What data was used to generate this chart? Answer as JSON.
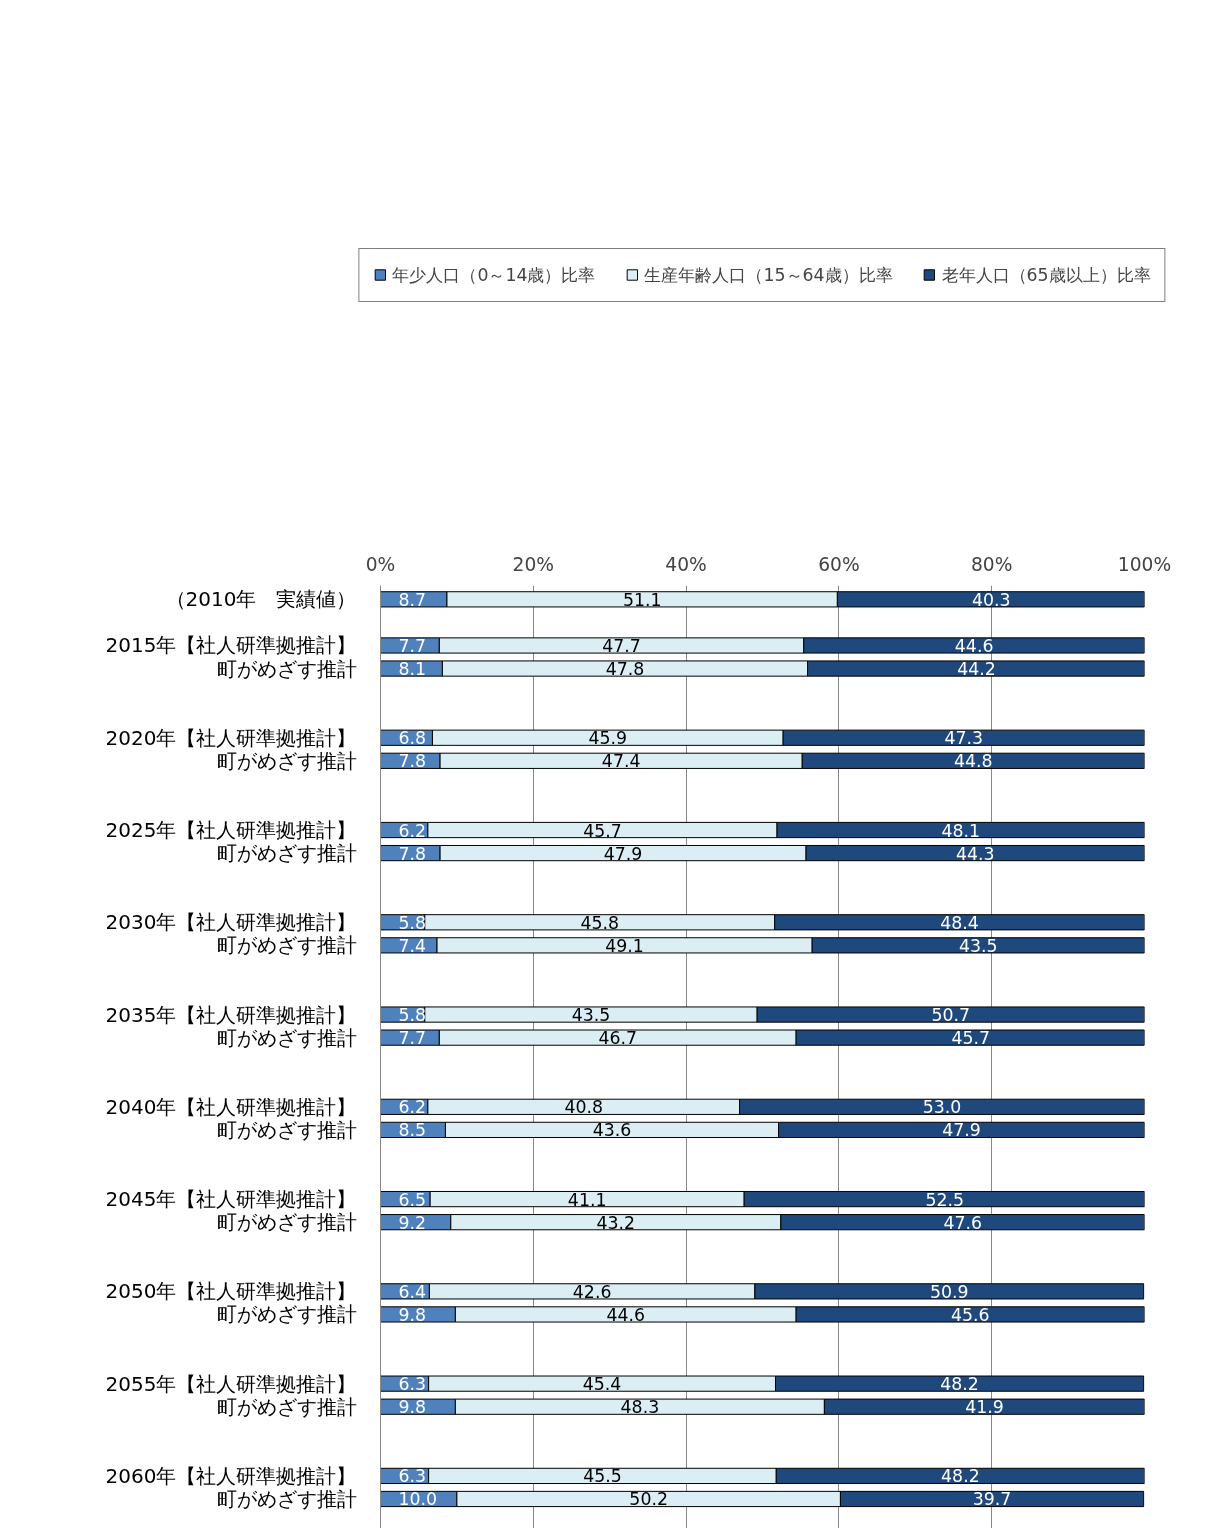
{
  "chart_data": {
    "type": "bar",
    "orientation": "horizontal",
    "stacked": true,
    "categories": [
      "（2010年　実績値）",
      null,
      "2015年【社人研準拠推計】",
      "町がめざす推計",
      null,
      null,
      "2020年【社人研準拠推計】",
      "町がめざす推計",
      null,
      null,
      "2025年【社人研準拠推計】",
      "町がめざす推計",
      null,
      null,
      "2030年【社人研準拠推計】",
      "町がめざす推計",
      null,
      null,
      "2035年【社人研準拠推計】",
      "町がめざす推計",
      null,
      null,
      "2040年【社人研準拠推計】",
      "町がめざす推計",
      null,
      null,
      "2045年【社人研準拠推計】",
      "町がめざす推計",
      null,
      null,
      "2050年【社人研準拠推計】",
      "町がめざす推計",
      null,
      null,
      "2055年【社人研準拠推計】",
      "町がめざす推計",
      null,
      null,
      "2060年【社人研準拠推計】",
      "町がめざす推計"
    ],
    "series": [
      {
        "name": "年少人口（0～14歳）比率",
        "color": "#4f81bd",
        "values": [
          8.7,
          null,
          7.7,
          8.1,
          null,
          null,
          6.8,
          7.8,
          null,
          null,
          6.2,
          7.8,
          null,
          null,
          5.8,
          7.4,
          null,
          null,
          5.8,
          7.7,
          null,
          null,
          6.2,
          8.5,
          null,
          null,
          6.5,
          9.2,
          null,
          null,
          6.4,
          9.8,
          null,
          null,
          6.3,
          9.8,
          null,
          null,
          6.3,
          10.0
        ],
        "value_labels": [
          "8.7",
          null,
          "7.7",
          "8.1",
          null,
          null,
          "6.8",
          "7.8",
          null,
          null,
          "6.2",
          "7.8",
          null,
          null,
          "5.8",
          "7.4",
          null,
          null,
          "5.8",
          "7.7",
          null,
          null,
          "6.2",
          "8.5",
          null,
          null,
          "6.5",
          "9.2",
          null,
          null,
          "6.4",
          "9.8",
          null,
          null,
          "6.3",
          "9.8",
          null,
          null,
          "6.3",
          "10.0"
        ]
      },
      {
        "name": "生産年齢人口（15～64歳）比率",
        "color": "#dbeef3",
        "values": [
          51.1,
          null,
          47.7,
          47.8,
          null,
          null,
          45.9,
          47.4,
          null,
          null,
          45.7,
          47.9,
          null,
          null,
          45.8,
          49.1,
          null,
          null,
          43.5,
          46.7,
          null,
          null,
          40.8,
          43.6,
          null,
          null,
          41.1,
          43.2,
          null,
          null,
          42.6,
          44.6,
          null,
          null,
          45.4,
          48.3,
          null,
          null,
          45.5,
          50.2
        ],
        "value_labels": [
          "51.1",
          null,
          "47.7",
          "47.8",
          null,
          null,
          "45.9",
          "47.4",
          null,
          null,
          "45.7",
          "47.9",
          null,
          null,
          "45.8",
          "49.1",
          null,
          null,
          "43.5",
          "46.7",
          null,
          null,
          "40.8",
          "43.6",
          null,
          null,
          "41.1",
          "43.2",
          null,
          null,
          "42.6",
          "44.6",
          null,
          null,
          "45.4",
          "48.3",
          null,
          null,
          "45.5",
          "50.2"
        ]
      },
      {
        "name": "老年人口（65歳以上）比率",
        "color": "#1f497d",
        "values": [
          40.3,
          null,
          44.6,
          44.2,
          null,
          null,
          47.3,
          44.8,
          null,
          null,
          48.1,
          44.3,
          null,
          null,
          48.4,
          43.5,
          null,
          null,
          50.7,
          45.7,
          null,
          null,
          53.0,
          47.9,
          null,
          null,
          52.5,
          47.6,
          null,
          null,
          50.9,
          45.6,
          null,
          null,
          48.2,
          41.9,
          null,
          null,
          48.2,
          39.7
        ],
        "value_labels": [
          "40.3",
          null,
          "44.6",
          "44.2",
          null,
          null,
          "47.3",
          "44.8",
          null,
          null,
          "48.1",
          "44.3",
          null,
          null,
          "48.4",
          "43.5",
          null,
          null,
          "50.7",
          "45.7",
          null,
          null,
          "53.0",
          "47.9",
          null,
          null,
          "52.5",
          "47.6",
          null,
          null,
          "50.9",
          "45.6",
          null,
          null,
          "48.2",
          "41.9",
          null,
          null,
          "48.2",
          "39.7"
        ]
      }
    ],
    "xlim": [
      0,
      100
    ],
    "xticks": [
      {
        "value": 0,
        "label": "0%"
      },
      {
        "value": 20,
        "label": "20%"
      },
      {
        "value": 40,
        "label": "40%"
      },
      {
        "value": 60,
        "label": "60%"
      },
      {
        "value": 80,
        "label": "80%"
      },
      {
        "value": 100,
        "label": "100%"
      }
    ],
    "grid": "x",
    "legend": "top"
  }
}
